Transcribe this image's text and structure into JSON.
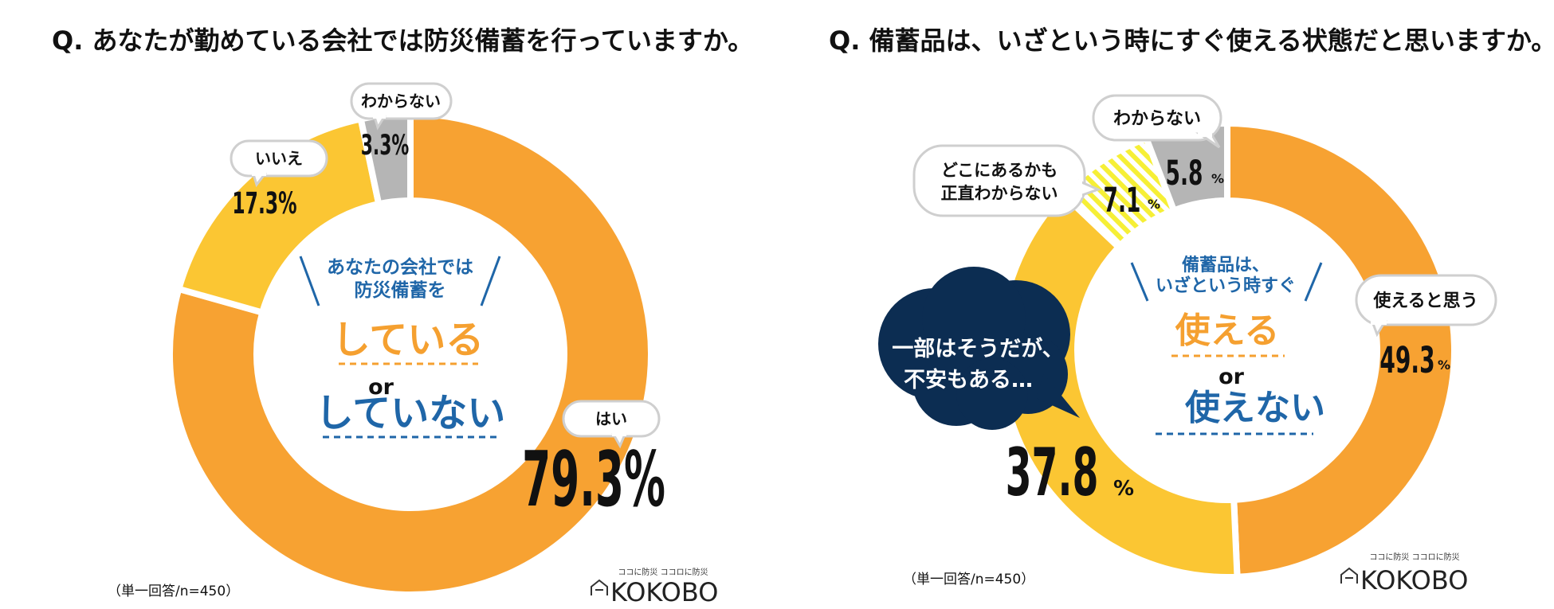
{
  "colors": {
    "orange": "#f7a232",
    "yellow": "#fbc633",
    "gray": "#b5b5b5",
    "navy": "#0c2d52",
    "blue": "#1f66a8",
    "hatch_yellow": "#f6ef36"
  },
  "chart_data": [
    {
      "type": "pie",
      "title": "Q. あなたが勤めている会社では防災備蓄を行っていますか。",
      "categories": [
        "はい",
        "いいえ",
        "わからない"
      ],
      "values": [
        79.3,
        17.3,
        3.3
      ],
      "value_labels": [
        "79.3%",
        "17.3%",
        "3.3%"
      ],
      "center_text": {
        "line1": "あなたの会社では",
        "line2": "防災備蓄を",
        "option_a": "している",
        "or": "or",
        "option_b": "していない"
      },
      "note": "（単一回答/n=450）"
    },
    {
      "type": "pie",
      "title": "Q. 備蓄品は、いざという時にすぐ使える状態だと思いますか。",
      "categories": [
        "使えると思う",
        "一部はそうだが、不安もある…",
        "どこにあるかも正直わからない",
        "わからない"
      ],
      "values": [
        49.3,
        37.8,
        7.1,
        5.8
      ],
      "value_numbers": [
        "49.3",
        "37.8",
        "7.1",
        "5.8"
      ],
      "pct_sign": "%",
      "labels": {
        "yes": "使えると思う",
        "partly_line1": "一部はそうだが、",
        "partly_line2": "不安もある…",
        "where_line1": "どこにあるかも",
        "where_line2": "正直わからない",
        "unknown": "わからない"
      },
      "center_text": {
        "line1": "備蓄品は、",
        "line2": "いざという時すぐ",
        "option_a": "使える",
        "or": "or",
        "option_b": "使えない"
      },
      "note": "（単一回答/n=450）"
    }
  ],
  "logo": {
    "tagline": "ココに防災 ココロに防災",
    "name": "KOKOBO"
  }
}
